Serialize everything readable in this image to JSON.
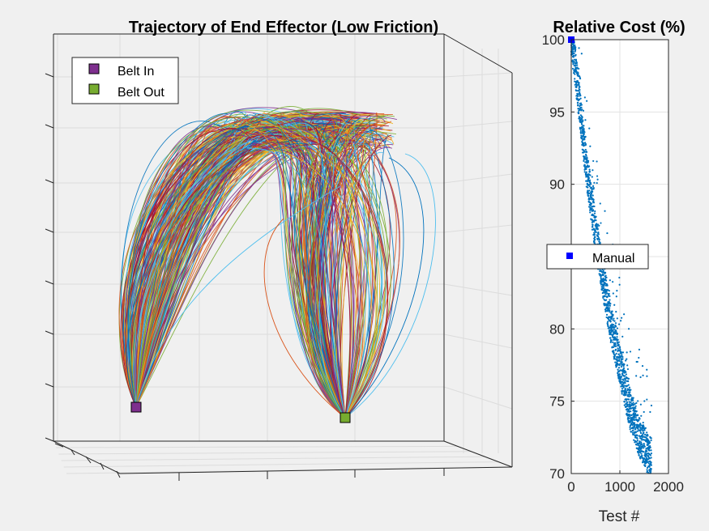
{
  "figure": {
    "background": "#f0f0f0"
  },
  "chart_data": [
    {
      "type": "line",
      "subtype": "3d-trajectories",
      "title": "Trajectory of End Effector (Low Friction)",
      "xlabel": "",
      "ylabel": "",
      "zlabel": "",
      "grid": true,
      "legend_position": "top-left",
      "markers": [
        {
          "name": "Belt In",
          "color": "#7e2f8e",
          "marker": "square"
        },
        {
          "name": "Belt Out",
          "color": "#77ac30",
          "marker": "square"
        }
      ],
      "series_colors": [
        "#0072bd",
        "#d95319",
        "#edb120",
        "#7e2f8e",
        "#77ac30",
        "#4dbeee",
        "#a2142f"
      ],
      "trajectory_groups": [
        {
          "from": "Belt In",
          "to": "apex",
          "approx_count": 260
        },
        {
          "from": "Belt Out",
          "to": "apex",
          "approx_count": 220
        }
      ]
    },
    {
      "type": "scatter",
      "title": "Relative Cost (%)",
      "xlabel": "Test #",
      "ylabel": "",
      "xlim": [
        0,
        2000
      ],
      "ylim": [
        70,
        100
      ],
      "xticks": [
        "0",
        "1000",
        "2000"
      ],
      "yticks": [
        "70",
        "75",
        "80",
        "85",
        "90",
        "95",
        "100"
      ],
      "grid": true,
      "legend_position": "center",
      "series": [
        {
          "name": "",
          "color": "#0072bd",
          "marker": "dot",
          "trend_x": [
            0,
            50,
            100,
            200,
            300,
            400,
            500,
            600,
            700,
            800,
            900,
            1000,
            1100,
            1200,
            1300,
            1400,
            1500,
            1600
          ],
          "trend_y": [
            99.5,
            98.5,
            97,
            94,
            91,
            88.5,
            86,
            84,
            82,
            80,
            78.5,
            77,
            75.5,
            74,
            73,
            72,
            71.3,
            70.6
          ],
          "approx_count": 1650
        },
        {
          "name": "Manual",
          "color": "#0000ff",
          "marker": "square",
          "x": [
            0
          ],
          "y": [
            100
          ]
        }
      ]
    }
  ]
}
